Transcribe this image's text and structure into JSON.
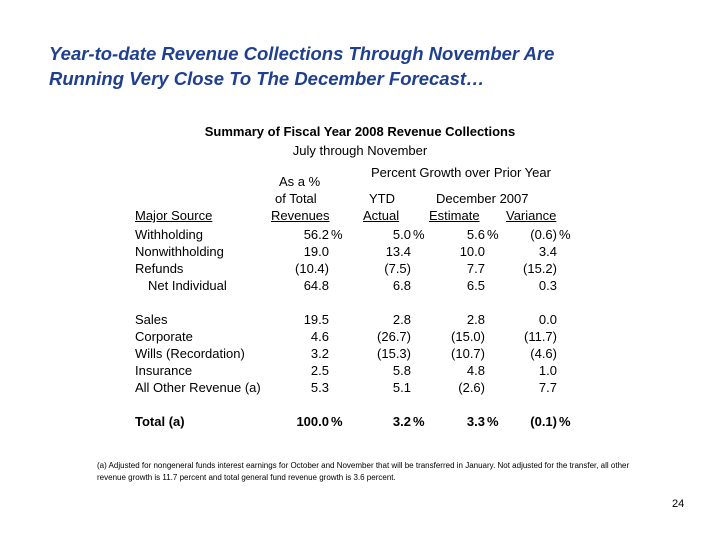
{
  "headline": {
    "line1": "Year-to-date Revenue Collections Through November Are",
    "line2": "Running Very Close To The December Forecast…"
  },
  "summary": {
    "title": "Summary of Fiscal Year 2008 Revenue Collections",
    "period": "July through November"
  },
  "table_headers": {
    "group_header": "Percent Growth over Prior Year",
    "share_line1": "As a %",
    "share_line2": "of Total",
    "share_line3": "Revenues",
    "major_source": "Major Source",
    "ytd_line1": "YTD",
    "ytd_line2": "Actual",
    "forecast_line1": "December 2007",
    "forecast_line2": "Estimate",
    "variance": "Variance"
  },
  "rows": [
    {
      "label": "Withholding",
      "share": "56.2",
      "ytd": "5.0",
      "estimate": "5.6",
      "variance": "(0.6)",
      "pct_share": "%",
      "pct_ytd": "%",
      "pct_est": "%",
      "pct_var": "%"
    },
    {
      "label": "Nonwithholding",
      "share": "19.0",
      "ytd": "13.4",
      "estimate": "10.0",
      "variance": "3.4"
    },
    {
      "label": "Refunds",
      "share": "(10.4)",
      "ytd": "(7.5)",
      "estimate": "7.7",
      "variance": "(15.2)"
    },
    {
      "label": "Net Individual",
      "share": "64.8",
      "ytd": "6.8",
      "estimate": "6.5",
      "variance": "0.3"
    },
    {
      "label": "Sales",
      "share": "19.5",
      "ytd": "2.8",
      "estimate": "2.8",
      "variance": "0.0"
    },
    {
      "label": "Corporate",
      "share": "4.6",
      "ytd": "(26.7)",
      "estimate": "(15.0)",
      "variance": "(11.7)"
    },
    {
      "label": "Wills (Recordation)",
      "share": "3.2",
      "ytd": "(15.3)",
      "estimate": "(10.7)",
      "variance": "(4.6)"
    },
    {
      "label": "Insurance",
      "share": "2.5",
      "ytd": "5.8",
      "estimate": "4.8",
      "variance": "1.0"
    },
    {
      "label": "All Other Revenue (a)",
      "share": "5.3",
      "ytd": "5.1",
      "estimate": "(2.6)",
      "variance": "7.7"
    },
    {
      "label": "Total (a)",
      "share": "100.0",
      "ytd": "3.2",
      "estimate": "3.3",
      "variance": "(0.1)",
      "pct_share": "%",
      "pct_ytd": "%",
      "pct_est": "%",
      "pct_var": "%"
    }
  ],
  "footnote": "(a) Adjusted for nongeneral funds interest earnings for October and November that will be transferred in January.  Not adjusted for the transfer, all other revenue growth is 11.7 percent and total general fund revenue growth is 3.6 percent.",
  "page_number": "24",
  "colors": {
    "headline": "#1f3f8f"
  }
}
